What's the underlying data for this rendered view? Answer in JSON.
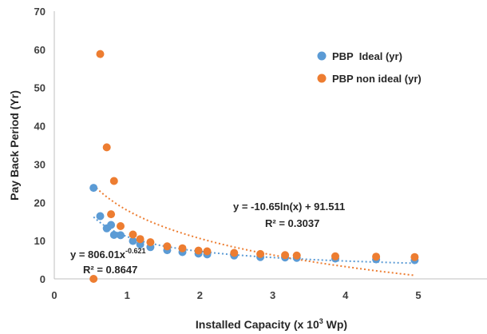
{
  "chart_data": {
    "type": "scatter",
    "title": "",
    "xlabel": "Installed Capacity (x 10",
    "xlabel_sup": "3",
    "xlabel_unit": " Wp)",
    "ylabel": "Pay Back Period (Yr)",
    "xlim": [
      0,
      6
    ],
    "ylim": [
      0,
      70
    ],
    "x_ticks": [
      "0",
      "1",
      "2",
      "3",
      "4",
      "5"
    ],
    "y_ticks": [
      "0",
      "10",
      "20",
      "30",
      "40",
      "50",
      "60",
      "70"
    ],
    "grid": false,
    "legend_position": "top-right",
    "series": [
      {
        "name": "PBP  Ideal (yr)",
        "color": "#5b9bd5",
        "points": [
          [
            0.54,
            23.8
          ],
          [
            0.63,
            16.4
          ],
          [
            0.72,
            13.2
          ],
          [
            0.78,
            14.1
          ],
          [
            0.82,
            11.5
          ],
          [
            0.91,
            11.4
          ],
          [
            1.08,
            9.9
          ],
          [
            1.18,
            9.0
          ],
          [
            1.32,
            8.3
          ],
          [
            1.55,
            7.5
          ],
          [
            1.76,
            7.0
          ],
          [
            1.98,
            6.6
          ],
          [
            2.1,
            6.4
          ],
          [
            2.47,
            6.1
          ],
          [
            2.83,
            5.7
          ],
          [
            3.17,
            5.6
          ],
          [
            3.33,
            5.5
          ],
          [
            3.86,
            5.3
          ],
          [
            4.42,
            5.1
          ],
          [
            4.95,
            4.9
          ]
        ],
        "trendline": "power",
        "equation": "y = 806.01x",
        "equation_exp": "-0.621",
        "r2": "R² = 0.8647"
      },
      {
        "name": "PBP non ideal (yr)",
        "color": "#ed7d31",
        "points": [
          [
            0.54,
            0.0
          ],
          [
            0.63,
            58.8
          ],
          [
            0.72,
            34.4
          ],
          [
            0.78,
            16.9
          ],
          [
            0.82,
            25.6
          ],
          [
            0.91,
            13.8
          ],
          [
            1.08,
            11.6
          ],
          [
            1.18,
            10.4
          ],
          [
            1.32,
            9.6
          ],
          [
            1.55,
            8.5
          ],
          [
            1.76,
            8.0
          ],
          [
            1.98,
            7.4
          ],
          [
            2.1,
            7.2
          ],
          [
            2.47,
            6.8
          ],
          [
            2.83,
            6.5
          ],
          [
            3.17,
            6.2
          ],
          [
            3.33,
            6.1
          ],
          [
            3.86,
            5.9
          ],
          [
            4.42,
            5.8
          ],
          [
            4.95,
            5.7
          ]
        ],
        "trendline": "logarithmic",
        "equation": "y = -10.65ln(x) + 91.511",
        "r2": "R² = 0.3037"
      }
    ]
  }
}
